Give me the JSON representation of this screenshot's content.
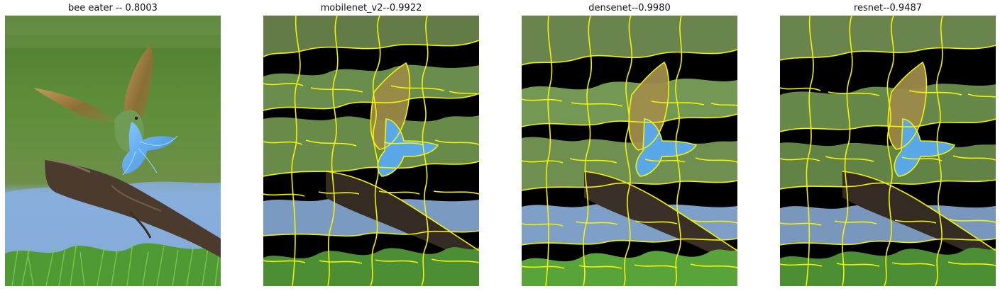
{
  "panels": [
    {
      "title": "bee eater -- 0.8003",
      "mode": "original"
    },
    {
      "title": "mobilenet_v2--0.9922",
      "mode": "explanation",
      "seed": 11
    },
    {
      "title": "densenet--0.9980",
      "mode": "explanation",
      "seed": 23
    },
    {
      "title": "resnet--0.9487",
      "mode": "explanation",
      "seed": 37
    }
  ],
  "colors": {
    "boundary": "#f2f20a",
    "masked": "#000000",
    "background_green": "#5f8f3a",
    "water_blue": "#88aede",
    "grass_green": "#4f9a33",
    "branch_brown": "#4a3b2e",
    "bird_blue": "#58a6e6",
    "bird_wing": "#b98a44"
  }
}
